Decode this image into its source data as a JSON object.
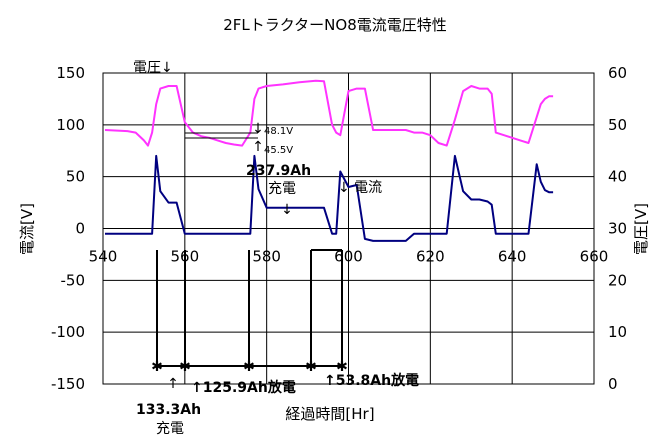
{
  "chart_data": {
    "type": "line",
    "title": "2FLトラクターNO8電流電圧特性",
    "xlabel": "経過時間[Hr]",
    "ylabel_left": "電流[V]",
    "ylabel_right": "電圧[V]",
    "xlim": [
      540,
      660
    ],
    "ylim_left": [
      -150,
      150
    ],
    "ylim_right": [
      0,
      60
    ],
    "x_ticks": [
      "540",
      "560",
      "580",
      "600",
      "620",
      "640",
      "660"
    ],
    "y_ticks_left": [
      "150",
      "100",
      "50",
      "0",
      "-50",
      "-100",
      "-150"
    ],
    "y_ticks_right": [
      "60",
      "50",
      "40",
      "30",
      "20",
      "10",
      "0"
    ],
    "grid": true,
    "series": [
      {
        "name": "電圧",
        "axis": "right",
        "color": "#ff33ff",
        "x": [
          540.5,
          546,
          548,
          550,
          551,
          552,
          553,
          554,
          556,
          558,
          560,
          562,
          564,
          566,
          568,
          570,
          572,
          574,
          576,
          577,
          578,
          580,
          584,
          588,
          592,
          594,
          596,
          597,
          598,
          600,
          602,
          604,
          606,
          608,
          610,
          612,
          614,
          616,
          618,
          620,
          622,
          624,
          626,
          628,
          630,
          632,
          634,
          635,
          636,
          638,
          640,
          642,
          644,
          646,
          647,
          648,
          649,
          650
        ],
        "y": [
          49.0,
          48.8,
          48.5,
          47.0,
          46.0,
          48.5,
          54.0,
          57.0,
          57.5,
          57.5,
          50.5,
          48.5,
          47.8,
          47.5,
          47.0,
          46.5,
          46.2,
          46.0,
          48.5,
          55.0,
          57.0,
          57.5,
          57.8,
          58.2,
          58.5,
          58.4,
          50.0,
          48.5,
          48.0,
          56.5,
          57.0,
          57.0,
          49.0,
          49.0,
          49.0,
          49.0,
          49.0,
          48.5,
          48.5,
          48.0,
          46.5,
          46.0,
          51.0,
          56.5,
          57.5,
          57.0,
          57.0,
          56.0,
          48.5,
          48.0,
          47.5,
          47.0,
          46.5,
          51.5,
          54.0,
          55.0,
          55.5,
          55.5
        ]
      },
      {
        "name": "電流",
        "axis": "left",
        "color": "#000080",
        "x": [
          540.5,
          546,
          550,
          552,
          553,
          554,
          556,
          558,
          560,
          562,
          564,
          566,
          568,
          570,
          572,
          574,
          576,
          577,
          578,
          580,
          584,
          588,
          592,
          594,
          596,
          597,
          598,
          600,
          602,
          604,
          606,
          608,
          610,
          612,
          614,
          616,
          618,
          620,
          622,
          624,
          626,
          628,
          630,
          632,
          634,
          635,
          636,
          638,
          640,
          642,
          644,
          646,
          647,
          648,
          649,
          650
        ],
        "y": [
          -5,
          -5,
          -5,
          -5,
          70,
          36,
          25,
          25,
          -5,
          -5,
          -5,
          -5,
          -5,
          -5,
          -5,
          -5,
          -5,
          70,
          38,
          20,
          20,
          20,
          20,
          20,
          -5,
          -5,
          55,
          40,
          42,
          -10,
          -12,
          -12,
          -12,
          -12,
          -12,
          -5,
          -5,
          -5,
          -5,
          -5,
          70,
          36,
          28,
          28,
          26,
          23,
          -5,
          -5,
          -5,
          -5,
          -5,
          62,
          45,
          37,
          35,
          35
        ]
      }
    ],
    "annotations": {
      "voltage_arrow": "電圧↓",
      "v481": "48.1V",
      "v455": "45.5V",
      "ah2379": "237.9Ah",
      "charge_mid": "充電",
      "current_arrow": "↓ 電流",
      "ah1259": "↑125.9Ah放電",
      "ah538": "↑53.8Ah放電",
      "ah1333": "133.3Ah",
      "charge_bottom": "充電"
    }
  }
}
